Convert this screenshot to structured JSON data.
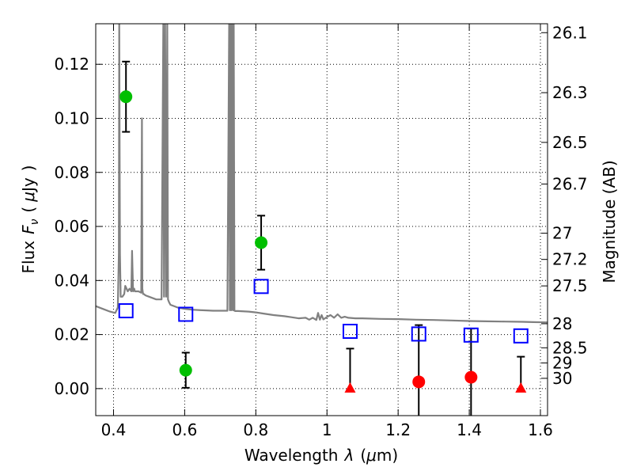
{
  "chart_data": {
    "type": "scatter",
    "xlabel_parts": [
      "Wavelength",
      "λ",
      "(",
      "μ",
      "m)"
    ],
    "ylabel_parts": [
      "Flux",
      "F",
      "ν",
      "(",
      "μ",
      "Jy",
      ")"
    ],
    "y2label": "Magnitude (AB)",
    "xlim": [
      0.35,
      1.62
    ],
    "ylim": [
      -0.01,
      0.135
    ],
    "grid": true,
    "x_ticks": [
      {
        "value": 0.4,
        "label": "0.4"
      },
      {
        "value": 0.6,
        "label": "0.6"
      },
      {
        "value": 0.8,
        "label": "0.8"
      },
      {
        "value": 1.0,
        "label": "1"
      },
      {
        "value": 1.2,
        "label": "1.2"
      },
      {
        "value": 1.4,
        "label": "1.4"
      },
      {
        "value": 1.6,
        "label": "1.6"
      }
    ],
    "y_ticks": [
      {
        "value": 0.0,
        "label": "0.00"
      },
      {
        "value": 0.02,
        "label": "0.02"
      },
      {
        "value": 0.04,
        "label": "0.04"
      },
      {
        "value": 0.06,
        "label": "0.06"
      },
      {
        "value": 0.08,
        "label": "0.08"
      },
      {
        "value": 0.1,
        "label": "0.10"
      },
      {
        "value": 0.12,
        "label": "0.12"
      }
    ],
    "y2_ticks": [
      {
        "flux": 0.1317,
        "label": "26.1"
      },
      {
        "flux": 0.1095,
        "label": "26.3"
      },
      {
        "flux": 0.0911,
        "label": "26.5"
      },
      {
        "flux": 0.0757,
        "label": "26.7"
      },
      {
        "flux": 0.0575,
        "label": "27"
      },
      {
        "flux": 0.0478,
        "label": "27.2"
      },
      {
        "flux": 0.038,
        "label": "27.5"
      },
      {
        "flux": 0.024,
        "label": "28"
      },
      {
        "flux": 0.0151,
        "label": "28.5"
      },
      {
        "flux": 0.0095,
        "label": "29"
      },
      {
        "flux": 0.0038,
        "label": "30"
      }
    ],
    "model_spectrum": {
      "color": "#808080",
      "x": [
        0.35,
        0.37,
        0.39,
        0.405,
        0.412,
        0.415,
        0.416,
        0.418,
        0.42,
        0.425,
        0.43,
        0.433,
        0.44,
        0.445,
        0.45,
        0.452,
        0.455,
        0.458,
        0.46,
        0.47,
        0.478,
        0.48,
        0.481,
        0.483,
        0.485,
        0.49,
        0.5,
        0.52,
        0.535,
        0.54,
        0.542,
        0.545,
        0.548,
        0.551,
        0.553,
        0.556,
        0.56,
        0.58,
        0.6,
        0.62,
        0.65,
        0.68,
        0.7,
        0.72,
        0.725,
        0.727,
        0.729,
        0.731,
        0.733,
        0.736,
        0.738,
        0.74,
        0.742,
        0.745,
        0.75,
        0.78,
        0.8,
        0.82,
        0.85,
        0.88,
        0.9,
        0.92,
        0.94,
        0.95,
        0.96,
        0.97,
        0.975,
        0.98,
        0.985,
        0.99,
        1.0,
        1.01,
        1.02,
        1.03,
        1.04,
        1.05,
        1.06,
        1.08,
        1.1,
        1.15,
        1.2,
        1.25,
        1.3,
        1.35,
        1.4,
        1.45,
        1.5,
        1.55,
        1.58,
        1.62
      ],
      "y": [
        0.0305,
        0.0295,
        0.0285,
        0.028,
        0.03,
        0.05,
        0.135,
        0.05,
        0.034,
        0.034,
        0.035,
        0.038,
        0.036,
        0.037,
        0.036,
        0.051,
        0.036,
        0.037,
        0.036,
        0.036,
        0.0355,
        0.1,
        0.037,
        0.035,
        0.035,
        0.0345,
        0.034,
        0.033,
        0.033,
        0.135,
        0.034,
        0.135,
        0.034,
        0.135,
        0.033,
        0.032,
        0.031,
        0.03,
        0.0295,
        0.0292,
        0.029,
        0.0288,
        0.0288,
        0.0288,
        0.135,
        0.029,
        0.135,
        0.029,
        0.135,
        0.029,
        0.135,
        0.0288,
        0.0287,
        0.0287,
        0.0287,
        0.0285,
        0.0282,
        0.0278,
        0.0272,
        0.0268,
        0.0264,
        0.026,
        0.0262,
        0.0255,
        0.0262,
        0.0254,
        0.028,
        0.0255,
        0.0272,
        0.0256,
        0.0265,
        0.0272,
        0.0262,
        0.0275,
        0.0262,
        0.0266,
        0.0262,
        0.026,
        0.026,
        0.0258,
        0.0257,
        0.0255,
        0.0254,
        0.0252,
        0.025,
        0.0249,
        0.0248,
        0.0247,
        0.0246,
        0.0245
      ]
    },
    "series": [
      {
        "name": "green detections",
        "marker": "circle",
        "color": "#00bf00",
        "points": [
          {
            "x": 0.435,
            "y": 0.108,
            "err": 0.013
          },
          {
            "x": 0.603,
            "y": 0.0068,
            "err": 0.0065
          },
          {
            "x": 0.815,
            "y": 0.054,
            "err": 0.01
          }
        ]
      },
      {
        "name": "red circles",
        "marker": "circle",
        "color": "#ff0000",
        "points": [
          {
            "x": 1.258,
            "y": 0.0025,
            "err": 0.021
          },
          {
            "x": 1.405,
            "y": 0.0042,
            "err": 0.018
          }
        ]
      },
      {
        "name": "red upper limits",
        "marker": "triangle",
        "color": "#ff0000",
        "points": [
          {
            "x": 1.065,
            "y": 0.0,
            "err_up": 0.0148
          },
          {
            "x": 1.545,
            "y": 0.0,
            "err_up": 0.0118
          }
        ]
      },
      {
        "name": "model photometry",
        "marker": "open-square",
        "color": "#0000ff",
        "points": [
          {
            "x": 0.435,
            "y": 0.0288
          },
          {
            "x": 0.603,
            "y": 0.0275
          },
          {
            "x": 0.815,
            "y": 0.0378
          },
          {
            "x": 1.065,
            "y": 0.0212
          },
          {
            "x": 1.258,
            "y": 0.0202
          },
          {
            "x": 1.405,
            "y": 0.0198
          },
          {
            "x": 1.545,
            "y": 0.0195
          }
        ]
      }
    ]
  }
}
